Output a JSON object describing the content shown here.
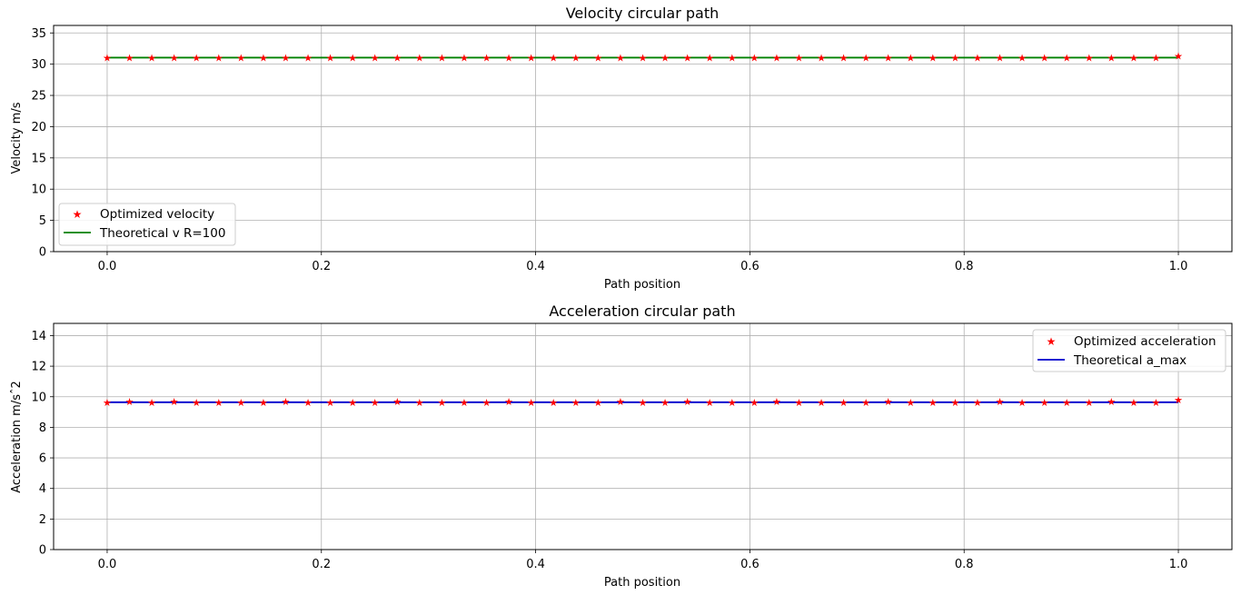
{
  "chart_data": [
    {
      "type": "line",
      "title": "Velocity circular path",
      "xlabel": "Path position",
      "ylabel": "Velocity m/s",
      "xlim": [
        -0.05,
        1.05
      ],
      "ylim": [
        0,
        36.2
      ],
      "xticks": [
        0.0,
        0.2,
        0.4,
        0.6,
        0.8,
        1.0
      ],
      "xtick_labels": [
        "0.0",
        "0.2",
        "0.4",
        "0.6",
        "0.8",
        "1.0"
      ],
      "yticks": [
        0,
        5,
        10,
        15,
        20,
        25,
        30,
        35
      ],
      "ytick_labels": [
        "0",
        "5",
        "10",
        "15",
        "20",
        "25",
        "30",
        "35"
      ],
      "grid": true,
      "legend_position": "lower-left",
      "series": [
        {
          "name": "Optimized velocity",
          "kind": "markers",
          "marker": "star",
          "color": "#ff0000",
          "x_range": [
            0,
            1
          ],
          "count": 49,
          "values": [
            31.05,
            31.05,
            31.05,
            31.05,
            31.05,
            31.05,
            31.05,
            31.05,
            31.05,
            31.05,
            31.05,
            31.05,
            31.05,
            31.05,
            31.05,
            31.05,
            31.05,
            31.05,
            31.05,
            31.05,
            31.05,
            31.05,
            31.05,
            31.05,
            31.05,
            31.05,
            31.05,
            31.05,
            31.05,
            31.05,
            31.05,
            31.05,
            31.05,
            31.05,
            31.05,
            31.05,
            31.05,
            31.05,
            31.05,
            31.05,
            31.05,
            31.05,
            31.05,
            31.05,
            31.05,
            31.05,
            31.05,
            31.05,
            31.35
          ]
        },
        {
          "name": "Theoretical v R=100",
          "kind": "line",
          "color": "#008000",
          "x": [
            0,
            1
          ],
          "values": [
            31.05,
            31.05
          ]
        }
      ]
    },
    {
      "type": "line",
      "title": "Acceleration circular path",
      "xlabel": "Path position",
      "ylabel": "Acceleration m/sˆ2",
      "xlim": [
        -0.05,
        1.05
      ],
      "ylim": [
        0,
        14.8
      ],
      "xticks": [
        0.0,
        0.2,
        0.4,
        0.6,
        0.8,
        1.0
      ],
      "xtick_labels": [
        "0.0",
        "0.2",
        "0.4",
        "0.6",
        "0.8",
        "1.0"
      ],
      "yticks": [
        0,
        2,
        4,
        6,
        8,
        10,
        12,
        14
      ],
      "ytick_labels": [
        "0",
        "2",
        "4",
        "6",
        "8",
        "10",
        "12",
        "14"
      ],
      "grid": true,
      "legend_position": "upper-right",
      "series": [
        {
          "name": "Optimized acceleration",
          "kind": "markers",
          "marker": "star",
          "color": "#ff0000",
          "x_range": [
            0,
            1
          ],
          "count": 49,
          "values": [
            9.64,
            9.69,
            9.64,
            9.69,
            9.64,
            9.64,
            9.64,
            9.64,
            9.69,
            9.64,
            9.64,
            9.64,
            9.64,
            9.69,
            9.64,
            9.64,
            9.64,
            9.64,
            9.69,
            9.64,
            9.64,
            9.64,
            9.64,
            9.69,
            9.64,
            9.64,
            9.69,
            9.64,
            9.64,
            9.64,
            9.69,
            9.64,
            9.64,
            9.64,
            9.64,
            9.69,
            9.64,
            9.64,
            9.64,
            9.64,
            9.69,
            9.64,
            9.64,
            9.64,
            9.64,
            9.69,
            9.64,
            9.64,
            9.81
          ]
        },
        {
          "name": "Theoretical a_max",
          "kind": "line",
          "color": "#0000cc",
          "x": [
            0,
            1
          ],
          "values": [
            9.64,
            9.64
          ]
        }
      ]
    }
  ]
}
